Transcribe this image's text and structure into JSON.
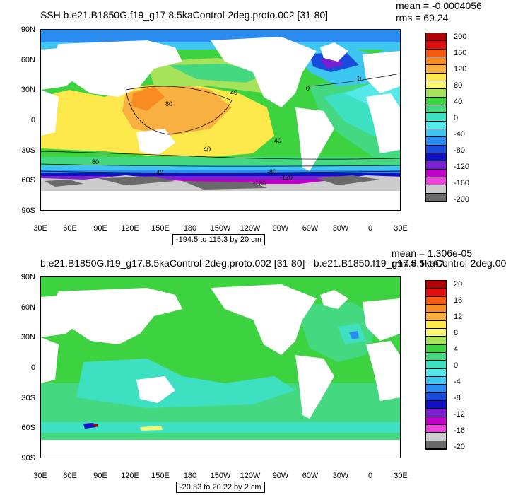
{
  "lat_labels": [
    "90N",
    "60N",
    "30N",
    "0",
    "30S",
    "60S",
    "90S"
  ],
  "lon_labels": [
    "30E",
    "60E",
    "90E",
    "120E",
    "150E",
    "180",
    "150W",
    "120W",
    "90W",
    "60W",
    "30W",
    "0",
    "30E"
  ],
  "panels": [
    {
      "title": "SSH b.e21.B1850G.f19_g17.8.5kaControl-2deg.proto.002 [31-80]",
      "mean": "mean = -0.0004056",
      "rms": "rms = 69.24",
      "range": "-194.5 to 115.3 by 20 cm",
      "legend_labels": [
        "200",
        "160",
        "120",
        "80",
        "40",
        "0",
        "-40",
        "-80",
        "-120",
        "-160",
        "-200"
      ],
      "legend_colors": [
        "#b40000",
        "#e01010",
        "#f55a10",
        "#f88c22",
        "#f8b040",
        "#fce84a",
        "#f9f870",
        "#a6e25a",
        "#3cd240",
        "#44d880",
        "#3de0c0",
        "#55e8e8",
        "#3cc6f0",
        "#2a8cf0",
        "#1a4cdc",
        "#1010c8",
        "#7a20d0",
        "#c000c8",
        "#f040e0",
        "#cccccc",
        "#6a6a6a"
      ],
      "contour_labels": [
        "80",
        "40",
        "0",
        "40",
        "80",
        "-40",
        "-80",
        "-120",
        "-160",
        "40",
        "0"
      ]
    },
    {
      "title": "b.e21.B1850G.f19_g17.8.5kaControl-2deg.proto.002 [31-80] - b.e21.B1850.f19_g17.8.5kaControl-2deg.00",
      "mean": "mean = 1.306e-05",
      "rms": "rms = 1.197",
      "range": "-20.33 to 20.22 by 2 cm",
      "legend_labels": [
        "20",
        "16",
        "12",
        "8",
        "4",
        "0",
        "-4",
        "-8",
        "-12",
        "-16",
        "-20"
      ],
      "legend_colors": [
        "#b40000",
        "#e01010",
        "#f55a10",
        "#f88c22",
        "#f8b040",
        "#fce84a",
        "#f9f870",
        "#a6e25a",
        "#3cd240",
        "#44d880",
        "#3de0c0",
        "#55e8e8",
        "#3cc6f0",
        "#2a8cf0",
        "#1a4cdc",
        "#1010c8",
        "#7a20d0",
        "#c000c8",
        "#f040e0",
        "#cccccc",
        "#6a6a6a"
      ]
    }
  ]
}
